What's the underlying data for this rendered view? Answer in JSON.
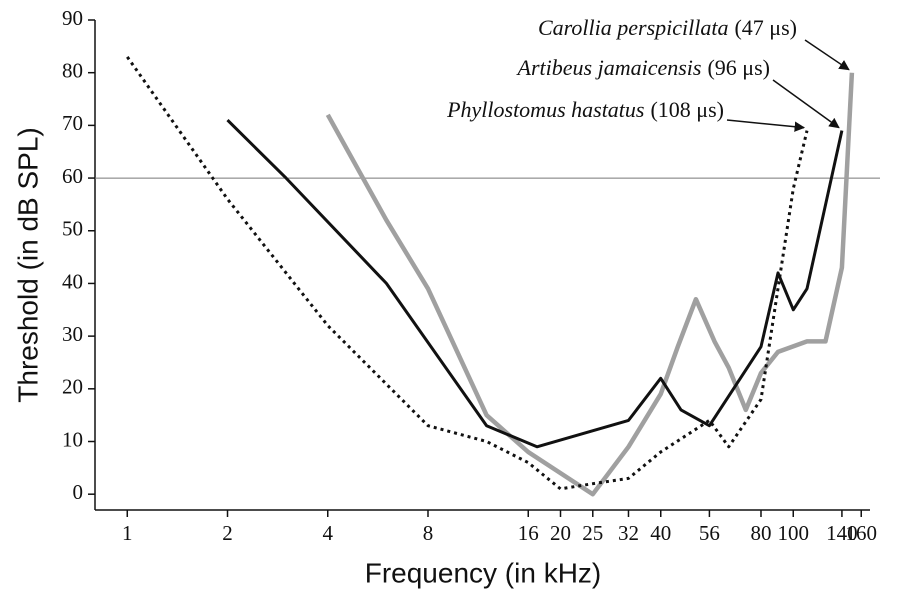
{
  "chart_data": {
    "type": "line",
    "x_label": "Frequency (in kHz)",
    "y_label": "Threshold (in dB SPL)",
    "xscale": "log",
    "xlim": [
      0.8,
      170
    ],
    "ylim": [
      -3,
      90
    ],
    "xticks": [
      1,
      2,
      4,
      8,
      16,
      20,
      25,
      32,
      40,
      56,
      80,
      100,
      140,
      160
    ],
    "yticks": [
      0,
      10,
      20,
      30,
      40,
      50,
      60,
      70,
      80,
      90
    ],
    "hline": 60,
    "series": [
      {
        "name": "Carollia perspicillata",
        "note": "(47 μs)",
        "color": "#a0a0a0",
        "style": "solid",
        "x": [
          4,
          5,
          6,
          8,
          12,
          16,
          25,
          32,
          40,
          45,
          51,
          58,
          64,
          72,
          80,
          90,
          110,
          125,
          140,
          150
        ],
        "values": [
          72,
          61,
          52,
          39,
          15,
          8,
          0,
          9,
          19,
          28,
          37,
          29,
          24,
          16,
          23,
          27,
          29,
          29,
          43,
          80
        ]
      },
      {
        "name": "Artibeus jamaicensis",
        "note": "(96 μs)",
        "color": "#111111",
        "style": "solid",
        "x": [
          2,
          3,
          6,
          12,
          17,
          32,
          40,
          46,
          56,
          80,
          90,
          100,
          110,
          140
        ],
        "values": [
          71,
          60,
          40,
          13,
          9,
          14,
          22,
          16,
          13,
          28,
          42,
          35,
          39,
          69
        ]
      },
      {
        "name": "Phyllostomus hastatus",
        "note": "(108 μs)",
        "color": "#111111",
        "style": "dotted",
        "x": [
          1,
          2,
          4,
          8,
          12,
          16,
          20,
          25,
          32,
          40,
          56,
          64,
          80,
          100,
          110
        ],
        "values": [
          83,
          56,
          32,
          13,
          10,
          6,
          1,
          2,
          3,
          8,
          14,
          9,
          18,
          58,
          69
        ]
      }
    ]
  }
}
